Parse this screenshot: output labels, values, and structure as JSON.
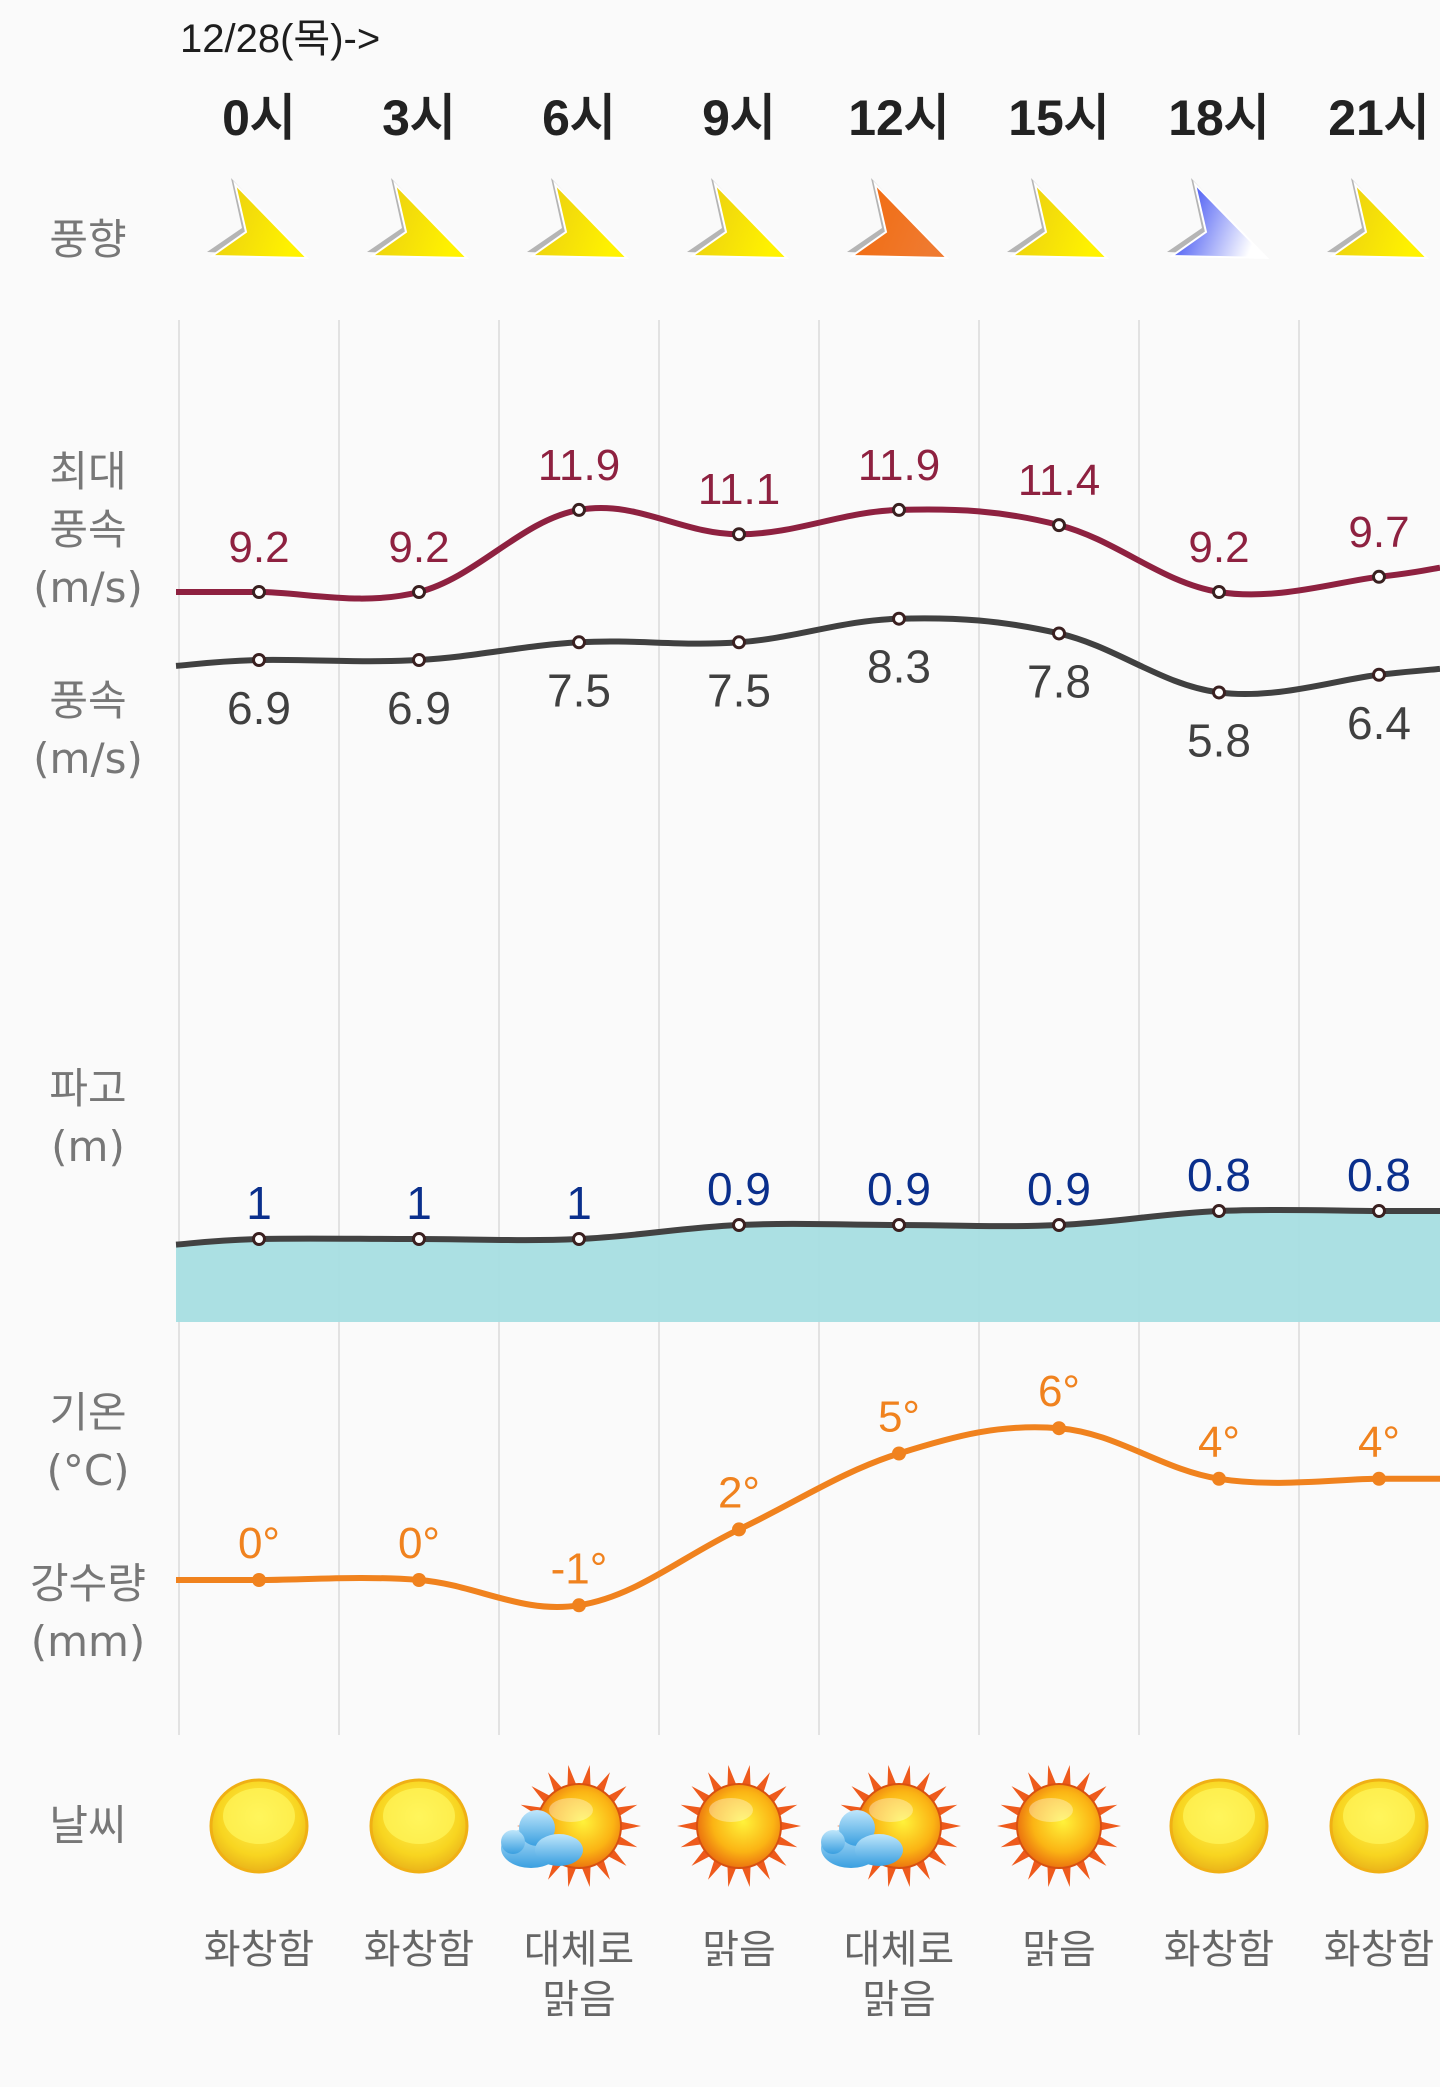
{
  "header": {
    "date_label": "12/28(목)->",
    "hours": [
      "0시",
      "3시",
      "6시",
      "9시",
      "12시",
      "15시",
      "18시",
      "21시"
    ]
  },
  "row_labels": {
    "wind_dir": "풍향",
    "max_wind": [
      "최대",
      "풍속",
      "(m/s)"
    ],
    "wind": [
      "풍속",
      "(m/s)"
    ],
    "wave": [
      "파고",
      "(m)"
    ],
    "temp": [
      "기온",
      "(°C)"
    ],
    "precip": [
      "강수량",
      "(mm)"
    ],
    "weather": "날씨"
  },
  "wind_direction": {
    "icons": [
      {
        "icon": "wind-arrow-icon",
        "color": "#e8c914"
      },
      {
        "icon": "wind-arrow-icon",
        "color": "#e8c914"
      },
      {
        "icon": "wind-arrow-icon",
        "color": "#e8c914"
      },
      {
        "icon": "wind-arrow-icon",
        "color": "#e8c914"
      },
      {
        "icon": "wind-arrow-icon",
        "color": "#f26a0c"
      },
      {
        "icon": "wind-arrow-icon",
        "color": "#e8c914"
      },
      {
        "icon": "wind-arrow-icon",
        "color": "#1a2ff0"
      },
      {
        "icon": "wind-arrow-icon",
        "color": "#e8c914"
      }
    ]
  },
  "chart_data": [
    {
      "type": "line",
      "title": "최대 풍속 (m/s)",
      "x": [
        "0시",
        "3시",
        "6시",
        "9시",
        "12시",
        "15시",
        "18시",
        "21시"
      ],
      "values": [
        9.2,
        9.2,
        11.9,
        11.1,
        11.9,
        11.4,
        9.2,
        9.7
      ],
      "labels": [
        "9.2",
        "9.2",
        "11.9",
        "11.1",
        "11.9",
        "11.4",
        "9.2",
        "9.7"
      ],
      "color": "#8e2140"
    },
    {
      "type": "line",
      "title": "풍속 (m/s)",
      "x": [
        "0시",
        "3시",
        "6시",
        "9시",
        "12시",
        "15시",
        "18시",
        "21시"
      ],
      "values": [
        6.9,
        6.9,
        7.5,
        7.5,
        8.3,
        7.8,
        5.8,
        6.4
      ],
      "labels": [
        "6.9",
        "6.9",
        "7.5",
        "7.5",
        "8.3",
        "7.8",
        "5.8",
        "6.4"
      ],
      "color": "#404040"
    },
    {
      "type": "area",
      "title": "파고 (m)",
      "x": [
        "0시",
        "3시",
        "6시",
        "9시",
        "12시",
        "15시",
        "18시",
        "21시"
      ],
      "values": [
        1,
        1,
        1,
        0.9,
        0.9,
        0.9,
        0.8,
        0.8
      ],
      "labels": [
        "1",
        "1",
        "1",
        "0.9",
        "0.9",
        "0.9",
        "0.8",
        "0.8"
      ],
      "color": "#0a2f8c",
      "fill": "#a6dee2"
    },
    {
      "type": "line",
      "title": "기온 (°C)",
      "x": [
        "0시",
        "3시",
        "6시",
        "9시",
        "12시",
        "15시",
        "18시",
        "21시"
      ],
      "values": [
        0,
        0,
        -1,
        2,
        5,
        6,
        4,
        4
      ],
      "labels": [
        "0°",
        "0°",
        "-1°",
        "2°",
        "5°",
        "6°",
        "4°",
        "4°"
      ],
      "color": "#f0821e"
    }
  ],
  "weather": {
    "items": [
      {
        "icon": "sun-disc-icon",
        "label": [
          "화창함"
        ]
      },
      {
        "icon": "sun-disc-icon",
        "label": [
          "화창함"
        ]
      },
      {
        "icon": "sun-cloud-icon",
        "label": [
          "대체로",
          "맑음"
        ]
      },
      {
        "icon": "sun-rays-icon",
        "label": [
          "맑음"
        ]
      },
      {
        "icon": "sun-cloud-icon",
        "label": [
          "대체로",
          "맑음"
        ]
      },
      {
        "icon": "sun-rays-icon",
        "label": [
          "맑음"
        ]
      },
      {
        "icon": "sun-disc-icon",
        "label": [
          "화창함"
        ]
      },
      {
        "icon": "sun-disc-icon",
        "label": [
          "화창함"
        ]
      }
    ]
  }
}
